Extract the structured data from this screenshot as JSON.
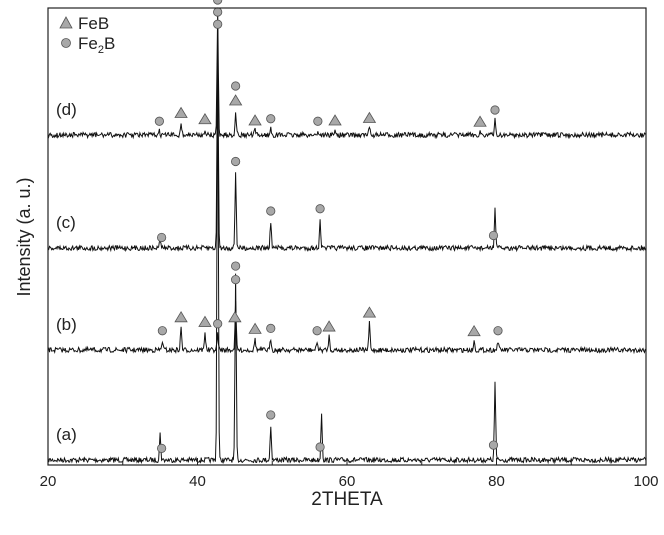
{
  "chart_data": {
    "type": "line",
    "xlabel": "2THETA",
    "ylabel": "Intensity (a. u.)",
    "xlim": [
      20,
      100
    ],
    "x_ticks": [
      "20",
      "40",
      "60",
      "80",
      "100"
    ],
    "grid": false,
    "legend_position": "top-left",
    "legend": [
      {
        "marker": "triangle",
        "label": "FeB",
        "sub": ""
      },
      {
        "marker": "circle",
        "label": "Fe",
        "sub": "2",
        "suffix": "B"
      }
    ],
    "colors": {
      "line": "#111111",
      "marker_fill": "#a8a8a8",
      "marker_stroke": "#555555"
    },
    "series": [
      {
        "label": "(a)",
        "peaks": [
          {
            "x": 35.0,
            "h": 0.06
          },
          {
            "x": 42.7,
            "h": 1.0
          },
          {
            "x": 45.1,
            "h": 0.42
          },
          {
            "x": 49.8,
            "h": 0.08
          },
          {
            "x": 56.6,
            "h": 0.11
          },
          {
            "x": 79.8,
            "h": 0.18
          }
        ],
        "markers": [
          {
            "x": 35.2,
            "type": "circle"
          },
          {
            "x": 42.7,
            "type": "circle"
          },
          {
            "x": 45.1,
            "type": "circle"
          },
          {
            "x": 49.8,
            "type": "circle"
          },
          {
            "x": 56.4,
            "type": "circle"
          },
          {
            "x": 79.6,
            "type": "circle"
          }
        ]
      },
      {
        "label": "(b)",
        "peaks": [
          {
            "x": 35.3,
            "h": 0.04
          },
          {
            "x": 37.8,
            "h": 0.1
          },
          {
            "x": 41.0,
            "h": 0.08
          },
          {
            "x": 42.7,
            "h": 0.07
          },
          {
            "x": 45.1,
            "h": 0.2
          },
          {
            "x": 47.7,
            "h": 0.05
          },
          {
            "x": 49.8,
            "h": 0.05
          },
          {
            "x": 56.0,
            "h": 0.04
          },
          {
            "x": 57.6,
            "h": 0.06
          },
          {
            "x": 63.0,
            "h": 0.12
          },
          {
            "x": 77.0,
            "h": 0.04
          },
          {
            "x": 80.2,
            "h": 0.04
          }
        ],
        "markers": [
          {
            "x": 35.3,
            "type": "circle"
          },
          {
            "x": 37.8,
            "type": "triangle"
          },
          {
            "x": 41.0,
            "type": "triangle"
          },
          {
            "x": 42.7,
            "type": "circle"
          },
          {
            "x": 45.0,
            "type": "triangle"
          },
          {
            "x": 45.1,
            "type": "circle"
          },
          {
            "x": 47.7,
            "type": "triangle"
          },
          {
            "x": 49.8,
            "type": "circle"
          },
          {
            "x": 56.0,
            "type": "circle"
          },
          {
            "x": 57.6,
            "type": "triangle"
          },
          {
            "x": 63.0,
            "type": "triangle"
          },
          {
            "x": 77.0,
            "type": "triangle"
          },
          {
            "x": 80.2,
            "type": "circle"
          }
        ]
      },
      {
        "label": "(c)",
        "peaks": [
          {
            "x": 35.0,
            "h": 0.04
          },
          {
            "x": 42.7,
            "h": 0.95
          },
          {
            "x": 45.1,
            "h": 0.34
          },
          {
            "x": 49.8,
            "h": 0.12
          },
          {
            "x": 56.4,
            "h": 0.13
          },
          {
            "x": 79.8,
            "h": 0.18
          }
        ],
        "markers": [
          {
            "x": 35.2,
            "type": "circle"
          },
          {
            "x": 42.7,
            "type": "circle"
          },
          {
            "x": 45.1,
            "type": "circle"
          },
          {
            "x": 49.8,
            "type": "circle"
          },
          {
            "x": 56.4,
            "type": "circle"
          },
          {
            "x": 79.6,
            "type": "circle"
          }
        ]
      },
      {
        "label": "(d)",
        "peaks": [
          {
            "x": 34.9,
            "h": 0.03
          },
          {
            "x": 37.8,
            "h": 0.1
          },
          {
            "x": 41.0,
            "h": 0.05
          },
          {
            "x": 42.7,
            "h": 1.0
          },
          {
            "x": 45.1,
            "h": 0.2
          },
          {
            "x": 47.7,
            "h": 0.04
          },
          {
            "x": 49.8,
            "h": 0.05
          },
          {
            "x": 56.1,
            "h": 0.03
          },
          {
            "x": 58.4,
            "h": 0.04
          },
          {
            "x": 63.0,
            "h": 0.06
          },
          {
            "x": 77.8,
            "h": 0.03
          },
          {
            "x": 79.8,
            "h": 0.12
          }
        ],
        "markers": [
          {
            "x": 34.9,
            "type": "circle"
          },
          {
            "x": 37.8,
            "type": "triangle"
          },
          {
            "x": 41.0,
            "type": "triangle"
          },
          {
            "x": 42.7,
            "type": "circle"
          },
          {
            "x": 45.1,
            "type": "triangle"
          },
          {
            "x": 45.1,
            "type": "circle"
          },
          {
            "x": 47.7,
            "type": "triangle"
          },
          {
            "x": 49.8,
            "type": "circle"
          },
          {
            "x": 56.1,
            "type": "circle"
          },
          {
            "x": 58.4,
            "type": "triangle"
          },
          {
            "x": 63.0,
            "type": "triangle"
          },
          {
            "x": 77.8,
            "type": "triangle"
          },
          {
            "x": 79.8,
            "type": "circle"
          }
        ]
      }
    ]
  }
}
